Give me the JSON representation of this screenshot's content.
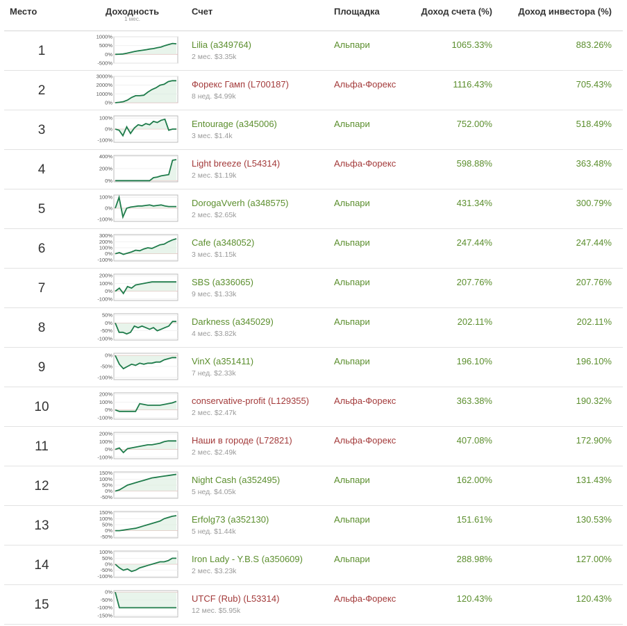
{
  "header": {
    "rank": "Место",
    "yield": "Доходность",
    "yield_sub": "1 мес.",
    "account": "Счет",
    "platform": "Площадка",
    "account_yield": "Доход счета (%)",
    "investor_yield": "Доход инвестора (%)"
  },
  "colors": {
    "green_text": "#5b8e2d",
    "red_text": "#a33a3a",
    "spark_line": "#1e7b4a",
    "spark_fill": "#d8ecdd"
  },
  "rows": [
    {
      "rank": "1",
      "name": "Lilia (a349764)",
      "meta": "2 мес. $3.35k",
      "platform": "Альпари",
      "account_yield": "1065.33%",
      "investor_yield": "883.26%",
      "color": "green",
      "spark": {
        "ticks": [
          "1000%",
          "500%",
          "0%",
          "-500%"
        ],
        "min": -500,
        "max": 1000,
        "values": [
          0,
          10,
          20,
          60,
          110,
          160,
          200,
          230,
          260,
          300,
          330,
          380,
          420,
          500,
          560,
          620,
          600
        ]
      }
    },
    {
      "rank": "2",
      "name": "Форекс Гамп (L700187)",
      "meta": "8 нед. $4.99k",
      "platform": "Альфа-Форекс",
      "account_yield": "1116.43%",
      "investor_yield": "705.43%",
      "color": "red",
      "spark": {
        "ticks": [
          "3000%",
          "2000%",
          "1000%",
          "0%"
        ],
        "min": 0,
        "max": 3000,
        "values": [
          0,
          50,
          120,
          300,
          600,
          800,
          800,
          850,
          1200,
          1500,
          1700,
          2000,
          2100,
          2400,
          2500,
          2500
        ]
      }
    },
    {
      "rank": "3",
      "name": "Entourage (a345006)",
      "meta": "3 мес. $1.4k",
      "platform": "Альпари",
      "account_yield": "752.00%",
      "investor_yield": "518.49%",
      "color": "green",
      "spark": {
        "ticks": [
          "100%",
          "0%",
          "-100%"
        ],
        "min": -120,
        "max": 120,
        "values": [
          0,
          -10,
          -60,
          20,
          -40,
          10,
          40,
          30,
          50,
          40,
          70,
          60,
          80,
          90,
          -10,
          0,
          0
        ]
      }
    },
    {
      "rank": "4",
      "name": "Light breeze (L54314)",
      "meta": "2 мес. $1.19k",
      "platform": "Альфа-Форекс",
      "account_yield": "598.88%",
      "investor_yield": "363.48%",
      "color": "red",
      "spark": {
        "ticks": [
          "400%",
          "200%",
          "0%"
        ],
        "min": -20,
        "max": 420,
        "values": [
          0,
          0,
          0,
          0,
          0,
          0,
          0,
          0,
          0,
          0,
          50,
          60,
          80,
          90,
          100,
          340,
          350
        ]
      }
    },
    {
      "rank": "5",
      "name": "DorogaVverh (a348575)",
      "meta": "2 мес. $2.65k",
      "platform": "Альпари",
      "account_yield": "431.34%",
      "investor_yield": "300.79%",
      "color": "green",
      "spark": {
        "ticks": [
          "100%",
          "0%",
          "-100%"
        ],
        "min": -120,
        "max": 120,
        "values": [
          0,
          100,
          -80,
          0,
          10,
          15,
          20,
          20,
          25,
          30,
          20,
          25,
          30,
          20,
          15,
          15,
          15
        ]
      }
    },
    {
      "rank": "6",
      "name": "Cafe (a348052)",
      "meta": "3 мес. $1.15k",
      "platform": "Альпари",
      "account_yield": "247.44%",
      "investor_yield": "247.44%",
      "color": "green",
      "spark": {
        "ticks": [
          "300%",
          "200%",
          "100%",
          "0%",
          "-100%"
        ],
        "min": -120,
        "max": 320,
        "values": [
          0,
          20,
          -10,
          10,
          30,
          60,
          50,
          80,
          100,
          90,
          120,
          150,
          160,
          200,
          230,
          250
        ]
      }
    },
    {
      "rank": "7",
      "name": "SBS (a336065)",
      "meta": "9 мес. $1.33k",
      "platform": "Альпари",
      "account_yield": "207.76%",
      "investor_yield": "207.76%",
      "color": "green",
      "spark": {
        "ticks": [
          "200%",
          "100%",
          "0%",
          "-100%"
        ],
        "min": -120,
        "max": 220,
        "values": [
          0,
          40,
          -30,
          60,
          40,
          80,
          90,
          100,
          110,
          120,
          120,
          120,
          120,
          120,
          120,
          120
        ]
      }
    },
    {
      "rank": "8",
      "name": "Darkness (a345029)",
      "meta": "4 мес. $3.82k",
      "platform": "Альпари",
      "account_yield": "202.11%",
      "investor_yield": "202.11%",
      "color": "green",
      "spark": {
        "ticks": [
          "50%",
          "0%",
          "-50%",
          "-100%"
        ],
        "min": -110,
        "max": 60,
        "values": [
          0,
          -60,
          -60,
          -70,
          -60,
          -20,
          -30,
          -20,
          -30,
          -40,
          -30,
          -50,
          -40,
          -30,
          -20,
          10,
          10
        ]
      }
    },
    {
      "rank": "9",
      "name": "VinX (a351411)",
      "meta": "7 нед. $2.33k",
      "platform": "Альпари",
      "account_yield": "196.10%",
      "investor_yield": "196.10%",
      "color": "green",
      "spark": {
        "ticks": [
          "0%",
          "-50%",
          "-100%"
        ],
        "min": -110,
        "max": 10,
        "values": [
          0,
          -40,
          -60,
          -50,
          -40,
          -45,
          -35,
          -40,
          -35,
          -35,
          -30,
          -30,
          -20,
          -15,
          -10,
          -10
        ]
      }
    },
    {
      "rank": "10",
      "name": "conservative-profit (L129355)",
      "meta": "2 мес. $2.47k",
      "platform": "Альфа-Форекс",
      "account_yield": "363.38%",
      "investor_yield": "190.32%",
      "color": "red",
      "spark": {
        "ticks": [
          "200%",
          "100%",
          "0%",
          "-100%"
        ],
        "min": -120,
        "max": 220,
        "values": [
          0,
          -20,
          -20,
          -20,
          -20,
          -20,
          80,
          70,
          60,
          60,
          60,
          60,
          70,
          80,
          90,
          110
        ]
      }
    },
    {
      "rank": "11",
      "name": "Наши в городе (L72821)",
      "meta": "2 мес. $2.49k",
      "platform": "Альфа-Форекс",
      "account_yield": "407.08%",
      "investor_yield": "172.90%",
      "color": "red",
      "spark": {
        "ticks": [
          "200%",
          "100%",
          "0%",
          "-100%"
        ],
        "min": -120,
        "max": 220,
        "values": [
          0,
          20,
          -40,
          10,
          20,
          30,
          40,
          50,
          60,
          60,
          70,
          80,
          100,
          110,
          110,
          110
        ]
      }
    },
    {
      "rank": "12",
      "name": "Night Cash (a352495)",
      "meta": "5 нед. $4.05k",
      "platform": "Альпари",
      "account_yield": "162.00%",
      "investor_yield": "131.43%",
      "color": "green",
      "spark": {
        "ticks": [
          "150%",
          "100%",
          "50%",
          "0%",
          "-50%"
        ],
        "min": -60,
        "max": 160,
        "values": [
          0,
          10,
          30,
          50,
          60,
          70,
          80,
          90,
          100,
          110,
          115,
          120,
          125,
          130,
          135,
          140
        ]
      }
    },
    {
      "rank": "13",
      "name": "Erfolg73 (a352130)",
      "meta": "5 нед. $1.44k",
      "platform": "Альпари",
      "account_yield": "151.61%",
      "investor_yield": "130.53%",
      "color": "green",
      "spark": {
        "ticks": [
          "150%",
          "100%",
          "50%",
          "0%",
          "-50%"
        ],
        "min": -60,
        "max": 160,
        "values": [
          0,
          0,
          5,
          10,
          15,
          20,
          30,
          40,
          50,
          60,
          70,
          80,
          100,
          110,
          120,
          125
        ]
      }
    },
    {
      "rank": "14",
      "name": "Iron Lady - Y.B.S (a350609)",
      "meta": "2 мес. $3.23k",
      "platform": "Альпари",
      "account_yield": "288.98%",
      "investor_yield": "127.00%",
      "color": "green",
      "spark": {
        "ticks": [
          "100%",
          "50%",
          "0%",
          "-50%",
          "-100%"
        ],
        "min": -110,
        "max": 110,
        "values": [
          0,
          -30,
          -50,
          -40,
          -60,
          -50,
          -30,
          -20,
          -10,
          0,
          10,
          20,
          20,
          30,
          50,
          50
        ]
      }
    },
    {
      "rank": "15",
      "name": "UTCF (Rub) (L53314)",
      "meta": "12 мес. $5.95k",
      "platform": "Альфа-Форекс",
      "account_yield": "120.43%",
      "investor_yield": "120.43%",
      "color": "red",
      "spark": {
        "ticks": [
          "0%",
          "-50%",
          "-100%",
          "-150%"
        ],
        "min": -160,
        "max": 10,
        "values": [
          0,
          -100,
          -100,
          -100,
          -100,
          -100,
          -100,
          -100,
          -100,
          -100,
          -100,
          -100,
          -100,
          -100,
          -100,
          -100
        ]
      }
    }
  ]
}
